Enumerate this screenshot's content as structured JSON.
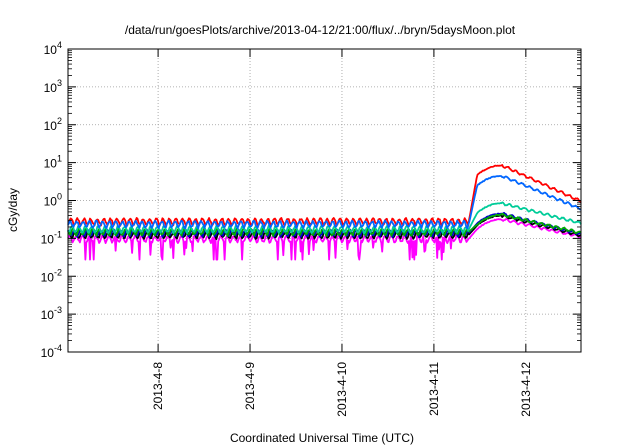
{
  "chart_data": {
    "type": "line",
    "title": "/data/run/goesPlots/archive/2013-04-12/21:00/flux/../bryn/5daysMoon.plot",
    "xlabel": "Coordinated Universal Time (UTC)",
    "ylabel": "cGy/day",
    "yscale": "log",
    "ylim": [
      0.0001,
      10000
    ],
    "xlim": [
      0,
      5.58
    ],
    "grid": true,
    "y_ticks": [
      {
        "base": "10",
        "exp": "4"
      },
      {
        "base": "10",
        "exp": "3"
      },
      {
        "base": "10",
        "exp": "2"
      },
      {
        "base": "10",
        "exp": "1"
      },
      {
        "base": "10",
        "exp": "0"
      },
      {
        "base": "10",
        "exp": "-1"
      },
      {
        "base": "10",
        "exp": "-2"
      },
      {
        "base": "10",
        "exp": "-3"
      },
      {
        "base": "10",
        "exp": "-4"
      }
    ],
    "x_ticks": [
      {
        "label": "2013-4-8",
        "x": 0.98
      },
      {
        "label": "2013-4-9",
        "x": 1.98
      },
      {
        "label": "2013-4-10",
        "x": 2.98
      },
      {
        "label": "2013-4-11",
        "x": 3.98
      },
      {
        "label": "2013-4-12",
        "x": 4.98
      }
    ],
    "series": [
      {
        "color": "#ff00ff",
        "base": 0.098,
        "event_peak": 0.32,
        "final": 0.11,
        "spiky": true
      },
      {
        "color": "#000000",
        "base": 0.125,
        "event_peak": 0.4,
        "final": 0.12,
        "spiky": false
      },
      {
        "color": "#0000cc",
        "base": 0.14,
        "event_peak": 0.45,
        "final": 0.13,
        "spiky": false
      },
      {
        "color": "#00aa00",
        "base": 0.15,
        "event_peak": 0.42,
        "final": 0.14,
        "spiky": false
      },
      {
        "color": "#00cc99",
        "base": 0.175,
        "event_peak": 0.85,
        "final": 0.25,
        "spiky": false
      },
      {
        "color": "#ff0000",
        "base": 0.28,
        "event_peak": 8.5,
        "final": 0.95,
        "spiky": false
      },
      {
        "color": "#0066ff",
        "base": 0.24,
        "event_peak": 4.5,
        "final": 0.6,
        "spiky": false
      }
    ],
    "event": {
      "onset": 4.36,
      "rise_end": 4.45,
      "peak_time": 4.72
    }
  }
}
